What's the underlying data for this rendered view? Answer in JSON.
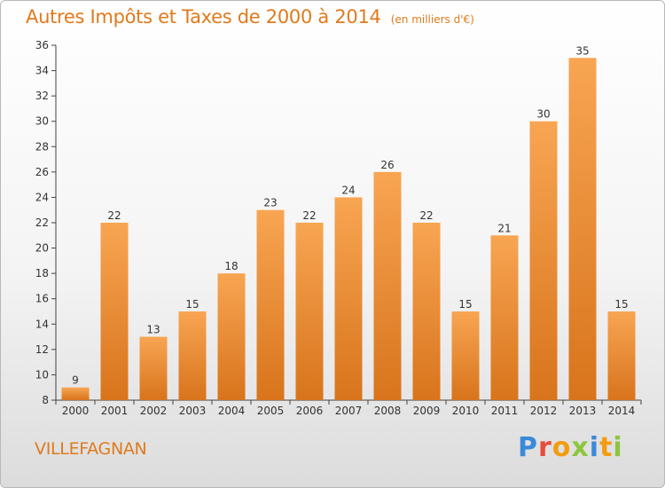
{
  "chart_data": {
    "type": "bar",
    "title": "Autres Impôts et Taxes de 2000 à 2014",
    "subtitle": "(en milliers d'€)",
    "categories": [
      "2000",
      "2001",
      "2002",
      "2003",
      "2004",
      "2005",
      "2006",
      "2007",
      "2008",
      "2009",
      "2010",
      "2011",
      "2012",
      "2013",
      "2014"
    ],
    "values": [
      9,
      22,
      13,
      15,
      18,
      23,
      22,
      24,
      26,
      22,
      15,
      21,
      30,
      35,
      15
    ],
    "xlabel": "",
    "ylabel": "",
    "ylim": [
      8,
      36
    ],
    "yticks": [
      8,
      10,
      12,
      14,
      16,
      18,
      20,
      22,
      24,
      26,
      28,
      30,
      32,
      34,
      36
    ],
    "grid": false,
    "legend": "none",
    "bar_color_top": "#f8a552",
    "bar_color_bottom": "#d8741c"
  },
  "footer": {
    "commune": "VILLEFAGNAN",
    "brand": "Proxiti"
  },
  "colors": {
    "title": "#e07a1c",
    "commune": "#e07a1c"
  }
}
